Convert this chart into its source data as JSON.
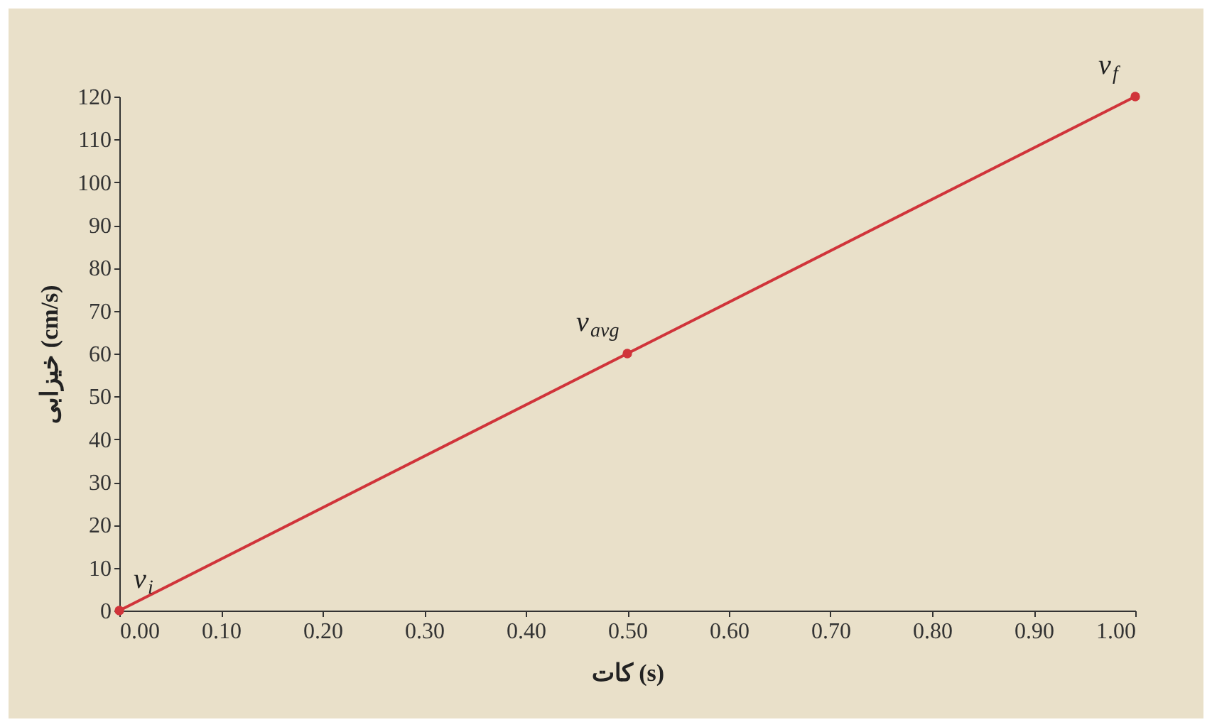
{
  "chart_data": {
    "type": "line",
    "xlabel": "کات (s)",
    "ylabel": "خیزابی (cm/s)",
    "x": [
      0,
      0.5,
      1
    ],
    "series": [
      {
        "color": "#d0343a",
        "values": [
          0,
          60,
          120
        ]
      }
    ],
    "marker": "circle",
    "grid": false,
    "legend": false,
    "xlim": [
      0,
      1
    ],
    "ylim": [
      0,
      120
    ],
    "xticks": [
      {
        "value": 0,
        "label": "0.00"
      },
      {
        "value": 0.1,
        "label": "0.10"
      },
      {
        "value": 0.2,
        "label": "0.20"
      },
      {
        "value": 0.3,
        "label": "0.30"
      },
      {
        "value": 0.4,
        "label": "0.40"
      },
      {
        "value": 0.5,
        "label": "0.50"
      },
      {
        "value": 0.6,
        "label": "0.60"
      },
      {
        "value": 0.7,
        "label": "0.70"
      },
      {
        "value": 0.8,
        "label": "0.80"
      },
      {
        "value": 0.9,
        "label": "0.90"
      },
      {
        "value": 1,
        "label": "1.00"
      }
    ],
    "yticks": [
      0,
      10,
      20,
      30,
      40,
      50,
      60,
      70,
      80,
      90,
      100,
      110,
      120
    ],
    "annotations": [
      {
        "text": "v$_{i}$",
        "x": 0,
        "y": 0
      },
      {
        "text": "v$_{avg}$",
        "x": 0.5,
        "y": 60
      },
      {
        "text": "v$_{f}$",
        "x": 1,
        "y": 120
      }
    ]
  }
}
